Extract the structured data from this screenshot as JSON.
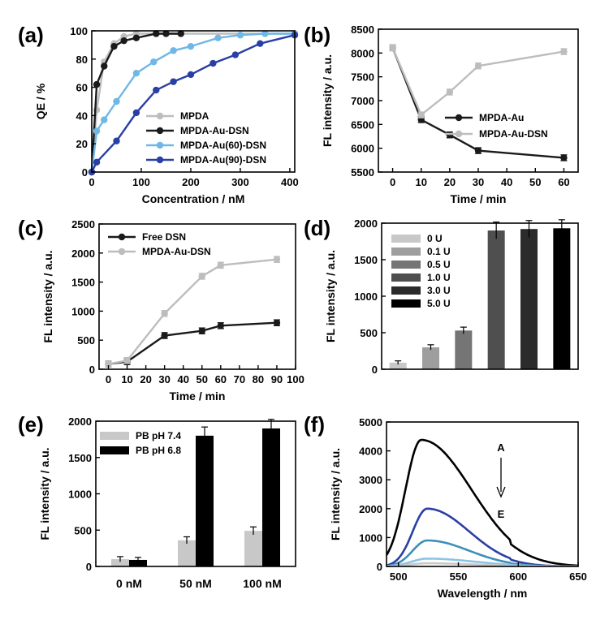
{
  "chart_data": [
    {
      "panel": "(a)",
      "type": "line",
      "xlabel": "Concentration / nM",
      "ylabel": "QE / %",
      "xlim": [
        0,
        410
      ],
      "ylim": [
        0,
        100
      ],
      "xticks": [
        0,
        100,
        200,
        300,
        400
      ],
      "yticks": [
        0,
        20,
        40,
        60,
        80,
        100
      ],
      "legend_position": "bottom-right",
      "series": [
        {
          "name": "MPDA",
          "color": "#bdbdbd",
          "points": [
            [
              0,
              0
            ],
            [
              10,
              44
            ],
            [
              25,
              78
            ],
            [
              45,
              91
            ],
            [
              65,
              96
            ],
            [
              90,
              98
            ],
            [
              130,
              98
            ],
            [
              180,
              98
            ],
            [
              410,
              98
            ]
          ]
        },
        {
          "name": "MPDA-Au-DSN",
          "color": "#1a1a1a",
          "points": [
            [
              0,
              0
            ],
            [
              10,
              62
            ],
            [
              25,
              75
            ],
            [
              45,
              89
            ],
            [
              65,
              93
            ],
            [
              90,
              95
            ],
            [
              130,
              98
            ],
            [
              150,
              98
            ],
            [
              180,
              98
            ]
          ]
        },
        {
          "name": "MPDA-Au(60)-DSN",
          "color": "#6fb7e6",
          "points": [
            [
              0,
              0
            ],
            [
              10,
              29
            ],
            [
              25,
              37
            ],
            [
              50,
              50
            ],
            [
              90,
              70
            ],
            [
              125,
              78
            ],
            [
              165,
              86
            ],
            [
              200,
              89
            ],
            [
              255,
              95
            ],
            [
              300,
              97
            ],
            [
              350,
              98
            ],
            [
              410,
              98
            ]
          ]
        },
        {
          "name": "MPDA-Au(90)-DSN",
          "color": "#2a3fa5",
          "points": [
            [
              0,
              0
            ],
            [
              10,
              7
            ],
            [
              50,
              22
            ],
            [
              90,
              42
            ],
            [
              130,
              58
            ],
            [
              165,
              64
            ],
            [
              200,
              69
            ],
            [
              245,
              77
            ],
            [
              290,
              83
            ],
            [
              340,
              91
            ],
            [
              410,
              97
            ]
          ]
        }
      ]
    },
    {
      "panel": "(b)",
      "type": "line",
      "xlabel": "Time / min",
      "ylabel": "FL intensity / a.u.",
      "xlim": [
        -5,
        65
      ],
      "ylim": [
        5500,
        8500
      ],
      "xticks": [
        0,
        10,
        20,
        30,
        40,
        50,
        60
      ],
      "yticks": [
        5500,
        6000,
        6500,
        7000,
        7500,
        8000,
        8500
      ],
      "legend_position": "right",
      "series": [
        {
          "name": "MPDA-Au",
          "color": "#1a1a1a",
          "points": [
            [
              0,
              8110
            ],
            [
              10,
              6600
            ],
            [
              20,
              6280
            ],
            [
              30,
              5950
            ],
            [
              60,
              5800
            ]
          ]
        },
        {
          "name": "MPDA-Au-DSN",
          "color": "#bdbdbd",
          "points": [
            [
              0,
              8110
            ],
            [
              10,
              6700
            ],
            [
              20,
              7180
            ],
            [
              30,
              7730
            ],
            [
              60,
              8030
            ]
          ]
        }
      ]
    },
    {
      "panel": "(c)",
      "type": "line",
      "xlabel": "Time / min",
      "ylabel": "FL intensity / a.u.",
      "xlim": [
        -5,
        100
      ],
      "ylim": [
        0,
        2500
      ],
      "xticks": [
        0,
        10,
        20,
        30,
        40,
        50,
        60,
        70,
        80,
        90,
        100
      ],
      "yticks": [
        0,
        500,
        1000,
        1500,
        2000,
        2500
      ],
      "legend_position": "top-left",
      "series": [
        {
          "name": "Free DSN",
          "color": "#1a1a1a",
          "points": [
            [
              0,
              90
            ],
            [
              10,
              130
            ],
            [
              30,
              580
            ],
            [
              50,
              660
            ],
            [
              60,
              750
            ],
            [
              90,
              800
            ]
          ]
        },
        {
          "name": "MPDA-Au-DSN",
          "color": "#bdbdbd",
          "points": [
            [
              0,
              90
            ],
            [
              10,
              150
            ],
            [
              30,
              960
            ],
            [
              50,
              1600
            ],
            [
              60,
              1790
            ],
            [
              90,
              1890
            ]
          ]
        }
      ]
    },
    {
      "panel": "(d)",
      "type": "bar",
      "ylabel": "FL intensity / a.u.",
      "ylim": [
        0,
        2000
      ],
      "yticks": [
        0,
        500,
        1000,
        1500,
        2000
      ],
      "legend_position": "top-left",
      "categories": [
        "0   U",
        "0.1 U",
        "0.5 U",
        "1.0 U",
        "3.0 U",
        "5.0 U"
      ],
      "values": [
        90,
        300,
        530,
        1900,
        1920,
        1930
      ],
      "colors": [
        "#c8c8c8",
        "#9e9e9e",
        "#757575",
        "#4f4f4f",
        "#2b2b2b",
        "#000000"
      ]
    },
    {
      "panel": "(e)",
      "type": "bar",
      "ylabel": "FL intensity / a.u.",
      "ylim": [
        0,
        2000
      ],
      "yticks": [
        0,
        500,
        1000,
        1500,
        2000
      ],
      "legend_position": "top-left",
      "categories": [
        "0 nM",
        "50 nM",
        "100 nM"
      ],
      "series": [
        {
          "name": "PB   pH 7.4",
          "color": "#c8c8c8",
          "values": [
            100,
            360,
            490
          ]
        },
        {
          "name": "PB   pH 6.8",
          "color": "#000000",
          "values": [
            90,
            1800,
            1900
          ]
        }
      ]
    },
    {
      "panel": "(f)",
      "type": "line",
      "xlabel": "Wavelength / nm",
      "ylabel": "FL intensity / a.u.",
      "xlim": [
        490,
        650
      ],
      "ylim": [
        0,
        5000
      ],
      "xticks": [
        500,
        550,
        600,
        650
      ],
      "yticks": [
        0,
        1000,
        2000,
        3000,
        4000,
        5000
      ],
      "annotations": {
        "top": "A",
        "bottom": "E"
      },
      "series": [
        {
          "color": "#000000",
          "peak": 4380,
          "center": 519,
          "width": 24,
          "tail": 42
        },
        {
          "color": "#2a3fa5",
          "peak": 2000,
          "center": 524,
          "width": 22,
          "tail": 35
        },
        {
          "color": "#3d8fb8",
          "peak": 900,
          "center": 524,
          "width": 22,
          "tail": 35
        },
        {
          "color": "#8cc3e6",
          "peak": 270,
          "center": 524,
          "width": 24,
          "tail": 40
        },
        {
          "color": "#c9c9c9",
          "peak": 110,
          "center": 524,
          "width": 26,
          "tail": 40
        }
      ]
    }
  ]
}
